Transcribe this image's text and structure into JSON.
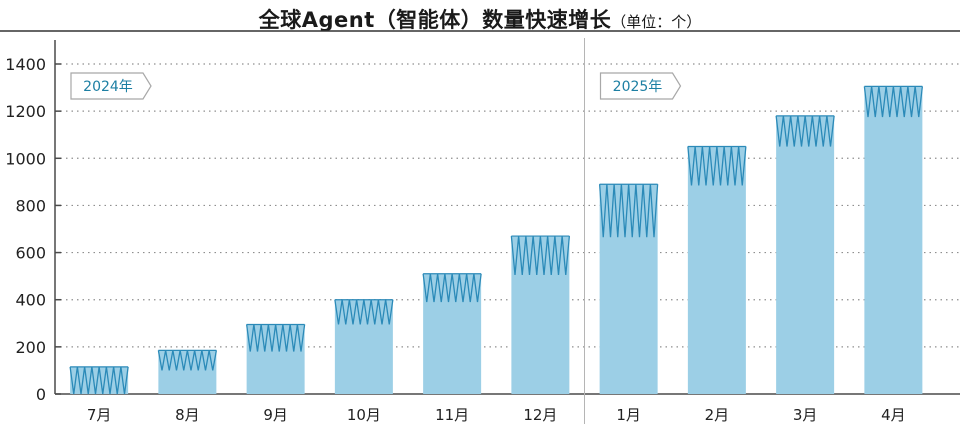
{
  "title": "全球Agent（智能体）数量快速增长",
  "unit_label": "（单位：个）",
  "colors": {
    "bar": "#9ccfe6",
    "zigzag": "#2b8ab8",
    "grid": "#8f8f8f",
    "axis": "#4a4a4a",
    "badge_border": "#a8a8a8",
    "badge_text": "#1d7fa3"
  },
  "chart_data": {
    "type": "bar",
    "title": "全球Agent（智能体）数量快速增长",
    "unit": "（单位：个）",
    "categories": [
      "7月",
      "8月",
      "9月",
      "10月",
      "11月",
      "12月",
      "1月",
      "2月",
      "3月",
      "4月"
    ],
    "ranges": [
      [
        0,
        115
      ],
      [
        100,
        185
      ],
      [
        180,
        295
      ],
      [
        295,
        400
      ],
      [
        390,
        510
      ],
      [
        505,
        670
      ],
      [
        665,
        890
      ],
      [
        885,
        1050
      ],
      [
        1050,
        1180
      ],
      [
        1175,
        1305
      ]
    ],
    "ylim": [
      0,
      1400
    ],
    "yticks": [
      0,
      200,
      400,
      600,
      800,
      1000,
      1200,
      1400
    ],
    "grid": true,
    "year_groups": [
      {
        "label": "2024年",
        "start_index": 0
      },
      {
        "label": "2025年",
        "start_index": 6
      }
    ]
  }
}
